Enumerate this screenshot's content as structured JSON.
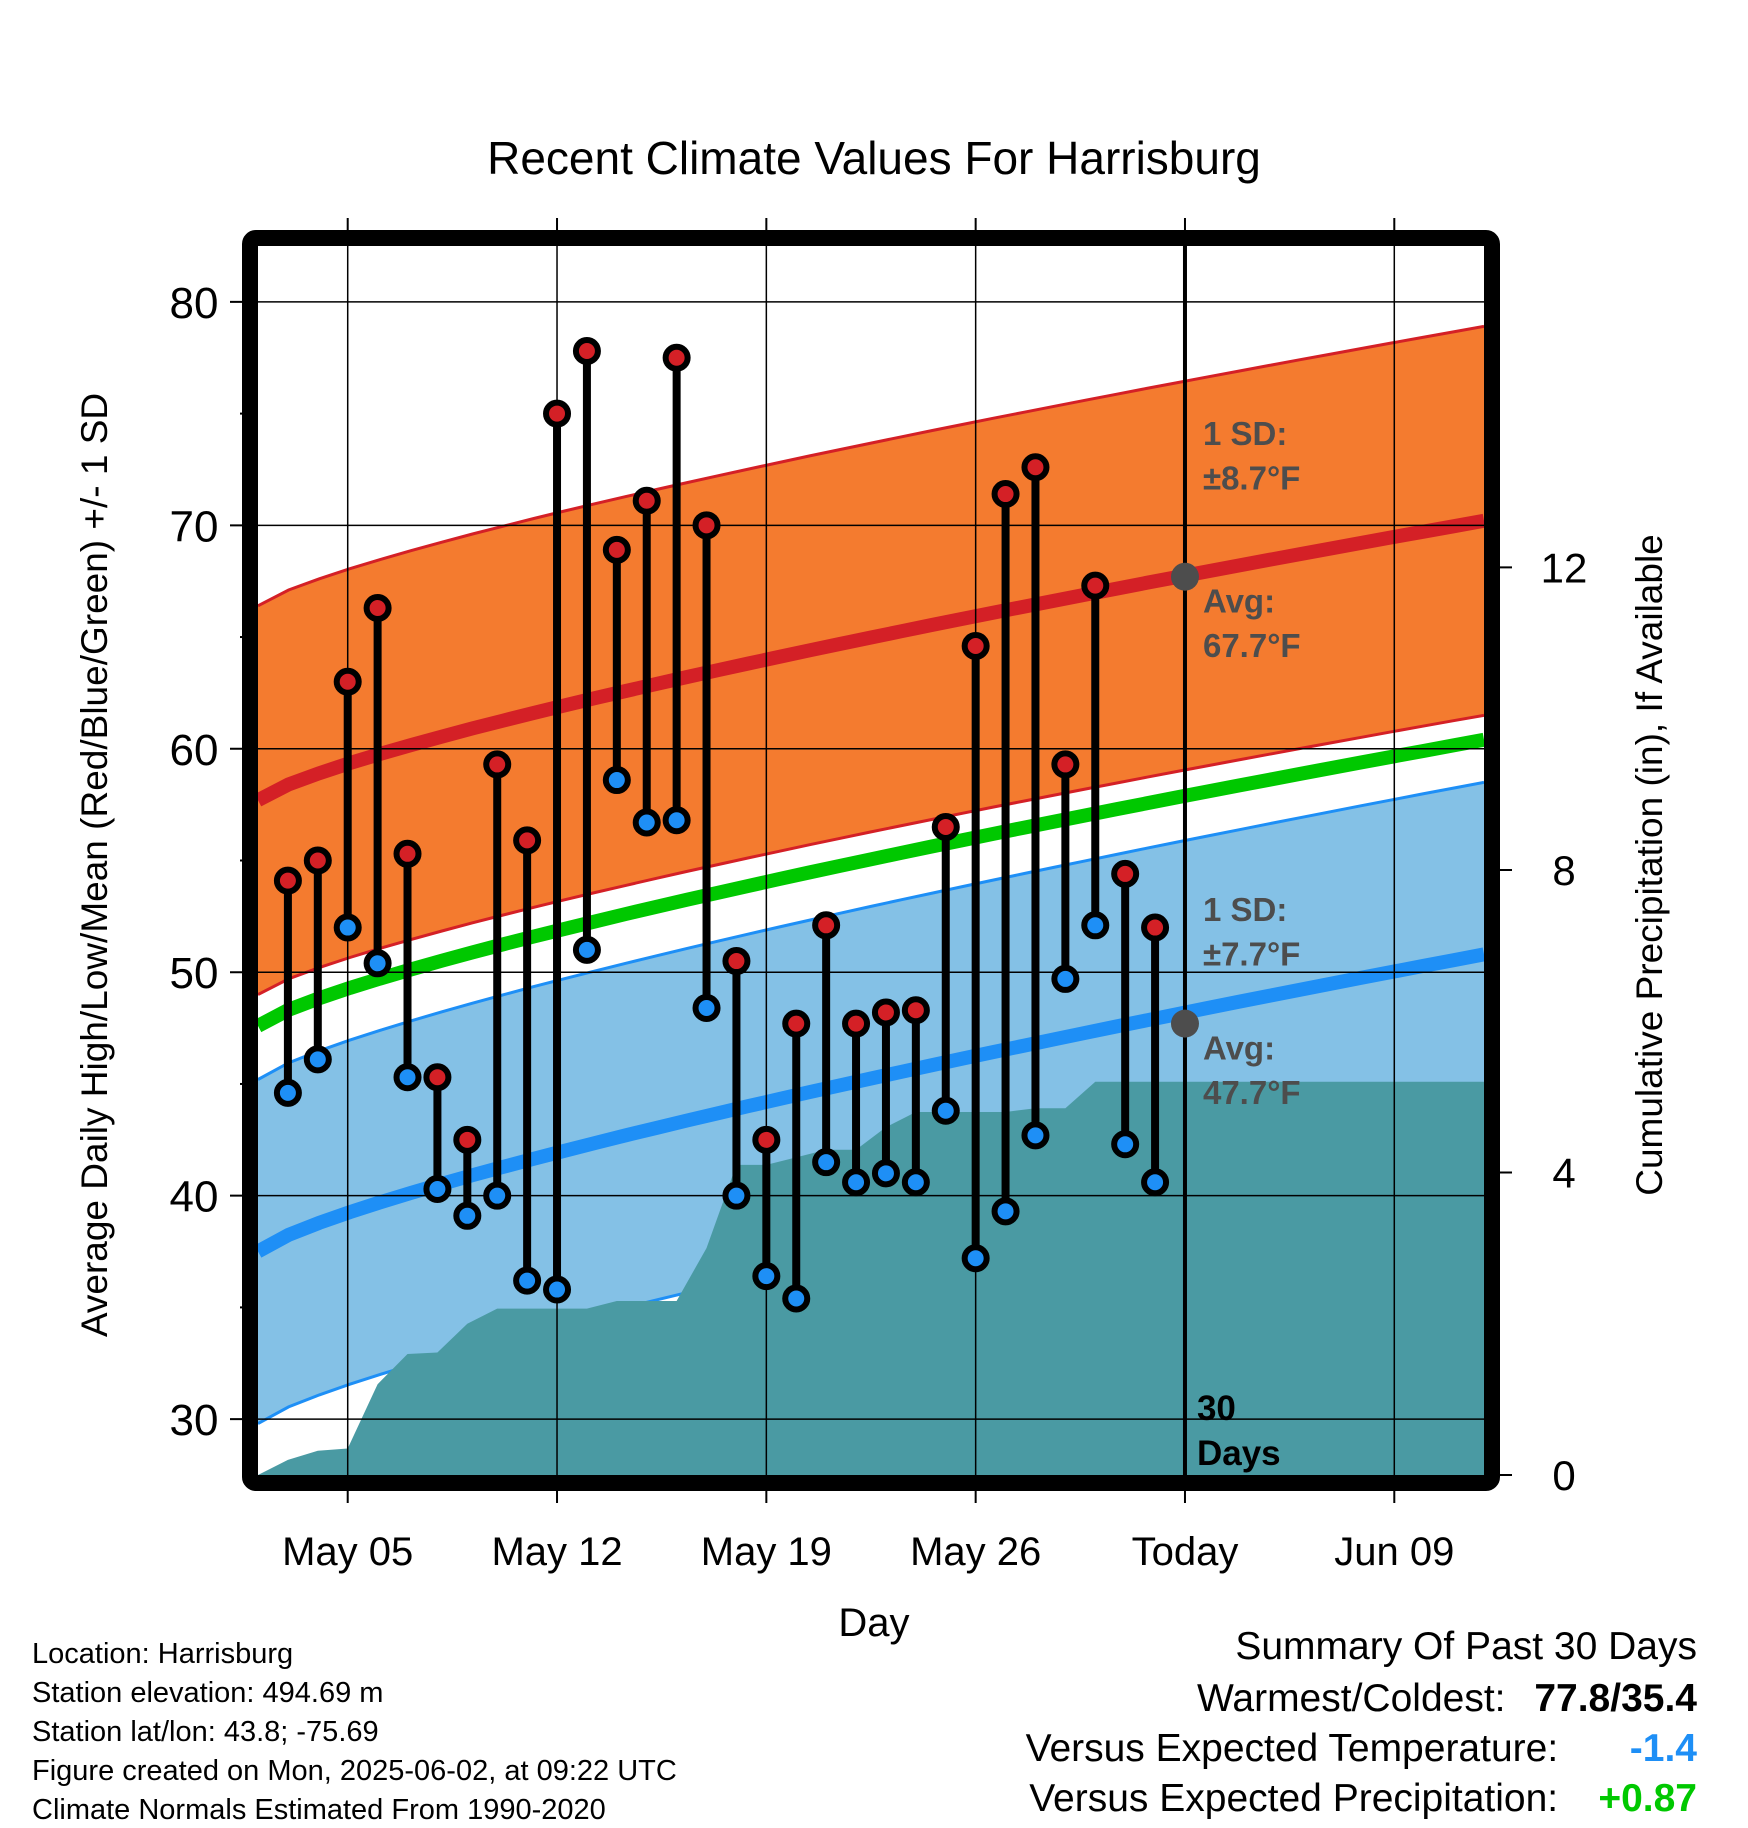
{
  "chart_data": {
    "type": "line",
    "title": "Recent Climate Values For Harrisburg",
    "xlabel": "Day",
    "ylabel": "Average Daily High/Low/Mean (Red/Blue/Green) +/- 1 SD",
    "y2label": "Cumulative Precipitation (in), If Available",
    "x_start_date": "2025-05-02",
    "today_date": "2025-06-02",
    "xlim_dates": [
      "2025-05-02",
      "2025-06-12"
    ],
    "ylim": [
      27.5,
      82.5
    ],
    "y2lim": [
      0,
      16.25
    ],
    "y_ticks": [
      30,
      40,
      50,
      60,
      70,
      80
    ],
    "y2_ticks": [
      0,
      4,
      8,
      12
    ],
    "x_ticks": [
      {
        "date": "2025-05-05",
        "label": "May 05"
      },
      {
        "date": "2025-05-12",
        "label": "May 12"
      },
      {
        "date": "2025-05-19",
        "label": "May 19"
      },
      {
        "date": "2025-05-26",
        "label": "May 26"
      },
      {
        "date": "2025-06-02",
        "label": "Today"
      },
      {
        "date": "2025-06-09",
        "label": "Jun 09"
      }
    ],
    "grid": true,
    "normals": {
      "dates": [
        "2025-05-02",
        "2025-06-12"
      ],
      "high_avg": [
        57.7,
        70.2
      ],
      "high_sd": 8.7,
      "low_avg": [
        37.5,
        50.8
      ],
      "low_sd": 7.7,
      "mean_avg": [
        47.6,
        60.4
      ]
    },
    "daily": {
      "dates": [
        "2025-05-03",
        "2025-05-04",
        "2025-05-05",
        "2025-05-06",
        "2025-05-07",
        "2025-05-08",
        "2025-05-09",
        "2025-05-10",
        "2025-05-11",
        "2025-05-12",
        "2025-05-13",
        "2025-05-14",
        "2025-05-15",
        "2025-05-16",
        "2025-05-17",
        "2025-05-18",
        "2025-05-19",
        "2025-05-20",
        "2025-05-21",
        "2025-05-22",
        "2025-05-23",
        "2025-05-24",
        "2025-05-25",
        "2025-05-26",
        "2025-05-27",
        "2025-05-28",
        "2025-05-29",
        "2025-05-30",
        "2025-05-31",
        "2025-06-01"
      ],
      "high": [
        54.1,
        55.0,
        63.0,
        66.3,
        55.3,
        45.3,
        42.5,
        59.3,
        55.9,
        75.0,
        77.8,
        68.9,
        71.1,
        77.5,
        70.0,
        50.5,
        42.5,
        47.7,
        52.1,
        47.7,
        48.2,
        48.3,
        56.5,
        64.6,
        71.4,
        72.6,
        59.3,
        67.3,
        54.4,
        52.0
      ],
      "low": [
        44.6,
        46.1,
        52.0,
        50.4,
        45.3,
        40.3,
        39.1,
        40.0,
        36.2,
        35.8,
        51.0,
        58.6,
        56.7,
        56.8,
        48.4,
        40.0,
        36.4,
        35.4,
        41.5,
        40.6,
        41.0,
        40.6,
        43.8,
        37.2,
        39.3,
        42.7,
        49.7,
        52.1,
        42.3,
        40.6
      ]
    },
    "precip_cumulative": {
      "dates": [
        "2025-05-02",
        "2025-05-03",
        "2025-05-04",
        "2025-05-05",
        "2025-05-06",
        "2025-05-07",
        "2025-05-08",
        "2025-05-09",
        "2025-05-10",
        "2025-05-11",
        "2025-05-12",
        "2025-05-13",
        "2025-05-14",
        "2025-05-15",
        "2025-05-16",
        "2025-05-17",
        "2025-05-18",
        "2025-05-19",
        "2025-05-20",
        "2025-05-21",
        "2025-05-22",
        "2025-05-23",
        "2025-05-24",
        "2025-05-25",
        "2025-05-26",
        "2025-05-27",
        "2025-05-28",
        "2025-05-29",
        "2025-05-30",
        "2025-05-31",
        "2025-06-01",
        "2025-06-02",
        "2025-06-12"
      ],
      "values": [
        0.0,
        0.2,
        0.32,
        0.35,
        1.2,
        1.6,
        1.62,
        2.0,
        2.2,
        2.2,
        2.2,
        2.2,
        2.3,
        2.3,
        2.3,
        3.0,
        4.1,
        4.1,
        4.2,
        4.3,
        4.3,
        4.6,
        4.8,
        4.8,
        4.8,
        4.8,
        4.85,
        4.85,
        5.2,
        5.2,
        5.2,
        5.2,
        5.2
      ]
    },
    "annotations": {
      "high_sd_label": "1 SD:",
      "high_sd_value": "±8.7°F",
      "high_avg_label": "Avg:",
      "high_avg_value": "67.7°F",
      "high_avg_marker": 67.7,
      "low_sd_label": "1 SD:",
      "low_sd_value": "±7.7°F",
      "low_avg_label": "Avg:",
      "low_avg_value": "47.7°F",
      "low_avg_marker": 47.7,
      "days_count": "30",
      "days_word": "Days"
    },
    "colors": {
      "high_band": "#f47b2f",
      "high_line": "#d42026",
      "low_band": "#84c1e6",
      "low_line": "#1e8ff6",
      "mean_line": "#00c800",
      "precip": "#4a9aa3",
      "high_point": "#d42026",
      "low_point": "#1e8ff6",
      "annotation": "#4d4d4d",
      "marker": "#4d4d4d"
    }
  },
  "footer": {
    "location": "Location: Harrisburg",
    "elevation": "Station elevation: 494.69 m",
    "latlon": "Station lat/lon: 43.8; -75.69",
    "created": "Figure created on Mon, 2025-06-02, at 09:22 UTC",
    "normals": "Climate Normals Estimated From 1990-2020"
  },
  "summary": {
    "title": "Summary Of Past 30 Days",
    "warmest_coldest_label": "Warmest/Coldest:",
    "warmest_coldest_value": "77.8/35.4",
    "temp_label": "Versus Expected Temperature:",
    "temp_value": "-1.4",
    "temp_color": "#1e8ff6",
    "precip_label": "Versus Expected Precipitation:",
    "precip_value": "+0.87",
    "precip_color": "#00c800"
  }
}
